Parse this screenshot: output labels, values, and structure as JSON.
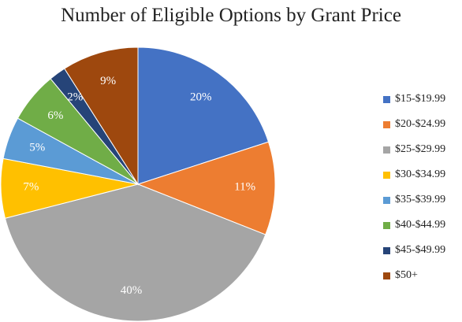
{
  "chart_data": {
    "type": "pie",
    "title": "Number of Eligible Options by Grant Price",
    "legend_position": "right",
    "slices": [
      {
        "label": "$15-$19.99",
        "value": 20,
        "display": "20%",
        "color": "#4472C4"
      },
      {
        "label": "$20-$24.99",
        "value": 11,
        "display": "11%",
        "color": "#ED7D31"
      },
      {
        "label": "$25-$29.99",
        "value": 40,
        "display": "40%",
        "color": "#A5A5A5"
      },
      {
        "label": "$30-$34.99",
        "value": 7,
        "display": "7%",
        "color": "#FFC000"
      },
      {
        "label": "$35-$39.99",
        "value": 5,
        "display": "5%",
        "color": "#5B9BD5"
      },
      {
        "label": "$40-$44.99",
        "value": 6,
        "display": "6%",
        "color": "#70AD47"
      },
      {
        "label": "$45-$49.99",
        "value": 2,
        "display": "2%",
        "color": "#264478"
      },
      {
        "label": "$50+",
        "value": 9,
        "display": "9%",
        "color": "#9E480E"
      }
    ]
  }
}
